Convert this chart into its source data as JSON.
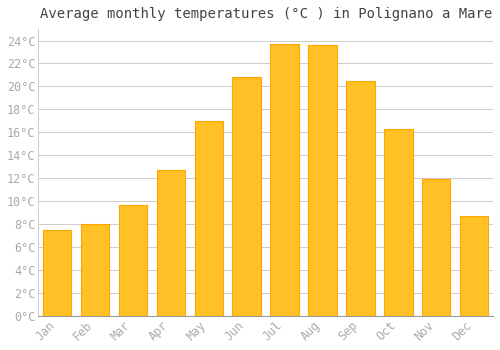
{
  "title": "Average monthly temperatures (°C ) in Polignano a Mare",
  "months": [
    "Jan",
    "Feb",
    "Mar",
    "Apr",
    "May",
    "Jun",
    "Jul",
    "Aug",
    "Sep",
    "Oct",
    "Nov",
    "Dec"
  ],
  "temperatures": [
    7.5,
    8.0,
    9.7,
    12.7,
    17.0,
    20.8,
    23.7,
    23.6,
    20.5,
    16.3,
    11.9,
    8.7
  ],
  "bar_color": "#FFC125",
  "bar_edge_color": "#FFA500",
  "background_color": "#FFFFFF",
  "grid_color": "#CCCCCC",
  "tick_label_color": "#AAAAAA",
  "title_color": "#444444",
  "ylim": [
    0,
    25
  ],
  "yticks": [
    0,
    2,
    4,
    6,
    8,
    10,
    12,
    14,
    16,
    18,
    20,
    22,
    24
  ],
  "title_fontsize": 10,
  "tick_fontsize": 8.5,
  "figsize": [
    5.0,
    3.5
  ],
  "dpi": 100
}
